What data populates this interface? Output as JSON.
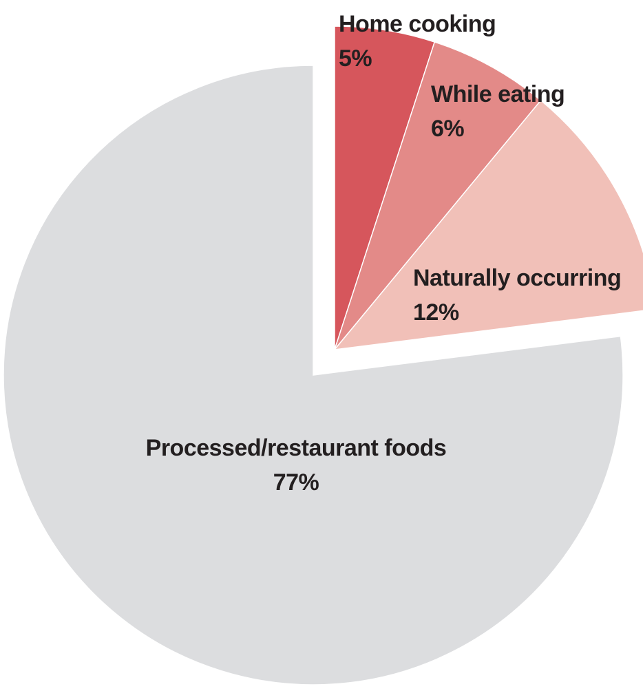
{
  "chart_data": {
    "type": "pie",
    "start_angle_deg": 0,
    "direction": "clockwise",
    "slices": [
      {
        "label": "Home cooking",
        "value": 5,
        "value_label": "5%",
        "color": "#d6565c",
        "exploded": true
      },
      {
        "label": "While eating",
        "value": 6,
        "value_label": "6%",
        "color": "#e38a88",
        "exploded": true
      },
      {
        "label": "Naturally occurring",
        "value": 12,
        "value_label": "12%",
        "color": "#f1c0b8",
        "exploded": true
      },
      {
        "label": "Processed/restaurant foods",
        "value": 77,
        "value_label": "77%",
        "color": "#dcdddf",
        "exploded": false
      }
    ]
  }
}
